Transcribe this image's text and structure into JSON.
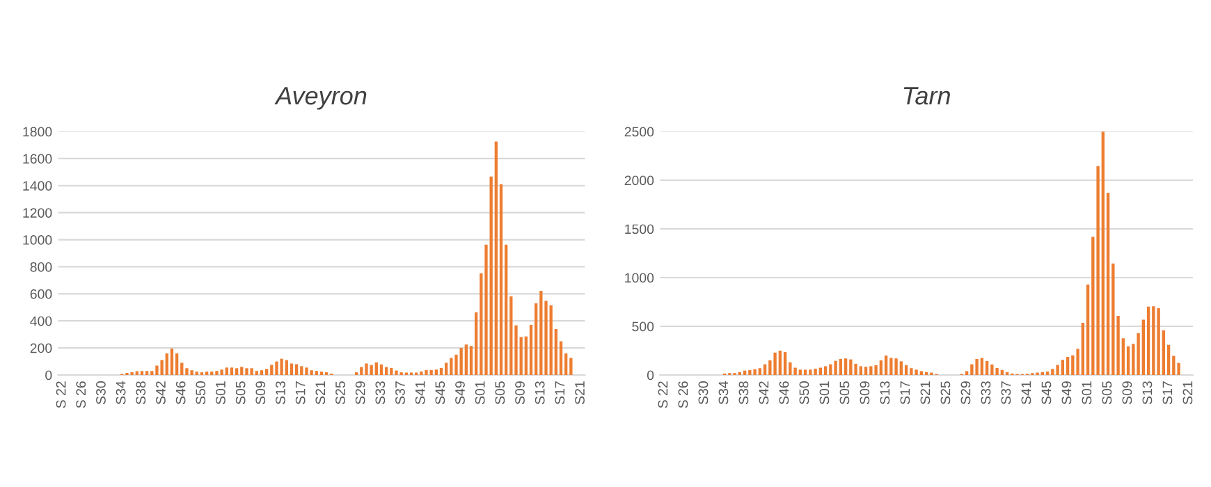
{
  "chart_data": [
    {
      "type": "bar",
      "title": "Aveyron",
      "color": "#ed7d31",
      "grid": "y",
      "ylim": [
        0,
        1800
      ],
      "yticks": [
        0,
        200,
        400,
        600,
        800,
        1000,
        1200,
        1400,
        1600,
        1800
      ],
      "categories": [
        "S 22",
        null,
        null,
        null,
        "S 26",
        null,
        null,
        null,
        "S30",
        null,
        null,
        null,
        "S34",
        null,
        null,
        null,
        "S38",
        null,
        null,
        null,
        "S42",
        null,
        null,
        null,
        "S46",
        null,
        null,
        null,
        "S50",
        null,
        null,
        null,
        "S01",
        null,
        null,
        null,
        "S05",
        null,
        null,
        null,
        "S09",
        null,
        null,
        null,
        "S13",
        null,
        null,
        null,
        "S17",
        null,
        null,
        null,
        "S21",
        null,
        null,
        null,
        "S25",
        null,
        null,
        null,
        "S29",
        null,
        null,
        null,
        "S33",
        null,
        null,
        null,
        "S37",
        null,
        null,
        null,
        "S41",
        null,
        null,
        null,
        "S45",
        null,
        null,
        null,
        "S49",
        null,
        null,
        null,
        "S01",
        null,
        null,
        null,
        "S05",
        null,
        null,
        null,
        "S09",
        null,
        null,
        null,
        "S13",
        null,
        null,
        null,
        "S17",
        null,
        null,
        null,
        "S21"
      ],
      "values": [
        0,
        0,
        0,
        0,
        0,
        0,
        0,
        0,
        0,
        0,
        0,
        0,
        8,
        15,
        20,
        28,
        30,
        30,
        30,
        70,
        110,
        160,
        195,
        160,
        90,
        50,
        35,
        25,
        20,
        25,
        25,
        30,
        40,
        55,
        55,
        50,
        60,
        50,
        50,
        30,
        35,
        45,
        75,
        100,
        120,
        110,
        85,
        80,
        65,
        55,
        35,
        30,
        25,
        20,
        10,
        null,
        null,
        0,
        0,
        20,
        59,
        85,
        74,
        93,
        78,
        59,
        52,
        33,
        20,
        18,
        18,
        18,
        26,
        37,
        37,
        40,
        52,
        90,
        126,
        150,
        200,
        225,
        215,
        463,
        752,
        963,
        1467,
        1726,
        1411,
        963,
        581,
        367,
        281,
        285,
        370,
        530,
        622,
        548,
        515,
        340,
        250,
        160,
        126,
        0,
        0
      ]
    },
    {
      "type": "bar",
      "title": "Tarn",
      "color": "#ed7d31",
      "grid": "y",
      "ylim": [
        0,
        2500
      ],
      "yticks": [
        0,
        500,
        1000,
        1500,
        2000,
        2500
      ],
      "categories": [
        "S 22",
        null,
        null,
        null,
        "S 26",
        null,
        null,
        null,
        "S30",
        null,
        null,
        null,
        "S34",
        null,
        null,
        null,
        "S38",
        null,
        null,
        null,
        "S42",
        null,
        null,
        null,
        "S46",
        null,
        null,
        null,
        "S50",
        null,
        null,
        null,
        "S01",
        null,
        null,
        null,
        "S05",
        null,
        null,
        null,
        "S09",
        null,
        null,
        null,
        "S13",
        null,
        null,
        null,
        "S17",
        null,
        null,
        null,
        "S21",
        null,
        null,
        null,
        "S25",
        null,
        null,
        null,
        "S29",
        null,
        null,
        null,
        "S33",
        null,
        null,
        null,
        "S37",
        null,
        null,
        null,
        "S41",
        null,
        null,
        null,
        "S45",
        null,
        null,
        null,
        "S49",
        null,
        null,
        null,
        "S01",
        null,
        null,
        null,
        "S05",
        null,
        null,
        null,
        "S09",
        null,
        null,
        null,
        "S13",
        null,
        null,
        null,
        "S17",
        null,
        null,
        null,
        "S21"
      ],
      "values": [
        0,
        0,
        0,
        0,
        0,
        0,
        0,
        0,
        0,
        0,
        0,
        0,
        15,
        20,
        20,
        30,
        45,
        50,
        60,
        70,
        110,
        150,
        230,
        250,
        235,
        130,
        75,
        55,
        55,
        55,
        65,
        75,
        90,
        110,
        145,
        165,
        170,
        160,
        115,
        90,
        85,
        90,
        100,
        150,
        200,
        175,
        170,
        140,
        100,
        70,
        55,
        40,
        30,
        25,
        10,
        null,
        null,
        0,
        null,
        10,
        40,
        110,
        165,
        175,
        144,
        108,
        72,
        52,
        30,
        15,
        10,
        10,
        12,
        20,
        25,
        30,
        36,
        62,
        103,
        155,
        186,
        201,
        268,
        536,
        928,
        1418,
        2144,
        2500,
        1871,
        1144,
        608,
        376,
        294,
        320,
        428,
        567,
        701,
        706,
        686,
        459,
        309,
        196,
        124,
        0,
        0
      ]
    }
  ]
}
